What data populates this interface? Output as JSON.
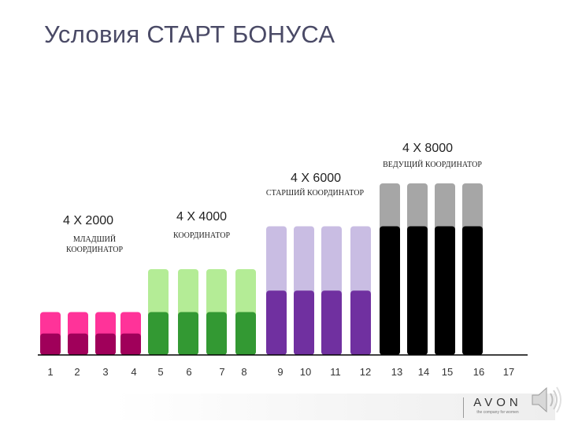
{
  "title": "Условия  СТАРТ БОНУСА",
  "chart_data": {
    "type": "bar",
    "stacked": true,
    "categories": [
      "1",
      "2",
      "3",
      "4",
      "5",
      "6",
      "7",
      "8",
      "9",
      "10",
      "11",
      "12",
      "13",
      "14",
      "15",
      "16",
      "17"
    ],
    "bars": [
      {
        "category": "1",
        "total": 2000,
        "base": 1000,
        "top_color": "#ff3399",
        "base_color": "#a0005a"
      },
      {
        "category": "2",
        "total": 2000,
        "base": 1000,
        "top_color": "#ff3399",
        "base_color": "#a0005a"
      },
      {
        "category": "3",
        "total": 2000,
        "base": 1000,
        "top_color": "#ff3399",
        "base_color": "#a0005a"
      },
      {
        "category": "4",
        "total": 2000,
        "base": 1000,
        "top_color": "#ff3399",
        "base_color": "#a0005a"
      },
      {
        "category": "5",
        "total": 4000,
        "base": 2000,
        "top_color": "#b4ec96",
        "base_color": "#339933"
      },
      {
        "category": "6",
        "total": 4000,
        "base": 2000,
        "top_color": "#b4ec96",
        "base_color": "#339933"
      },
      {
        "category": "7",
        "total": 4000,
        "base": 2000,
        "top_color": "#b4ec96",
        "base_color": "#339933"
      },
      {
        "category": "8",
        "total": 4000,
        "base": 2000,
        "top_color": "#b4ec96",
        "base_color": "#339933"
      },
      {
        "category": "9",
        "total": 6000,
        "base": 3000,
        "top_color": "#c9bde3",
        "base_color": "#7030a0"
      },
      {
        "category": "10",
        "total": 6000,
        "base": 3000,
        "top_color": "#c9bde3",
        "base_color": "#7030a0"
      },
      {
        "category": "11",
        "total": 6000,
        "base": 3000,
        "top_color": "#c9bde3",
        "base_color": "#7030a0"
      },
      {
        "category": "12",
        "total": 6000,
        "base": 3000,
        "top_color": "#c9bde3",
        "base_color": "#7030a0"
      },
      {
        "category": "13",
        "total": 8000,
        "base": 6000,
        "top_color": "#a6a6a6",
        "base_color": "#000000"
      },
      {
        "category": "14",
        "total": 8000,
        "base": 6000,
        "top_color": "#a6a6a6",
        "base_color": "#000000"
      },
      {
        "category": "15",
        "total": 8000,
        "base": 6000,
        "top_color": "#a6a6a6",
        "base_color": "#000000"
      },
      {
        "category": "16",
        "total": 8000,
        "base": 6000,
        "top_color": "#a6a6a6",
        "base_color": "#000000"
      }
    ],
    "groups": [
      {
        "label": "4 X 2000",
        "sublines": [
          "МЛАДШИЙ",
          "КООРДИНАТОР"
        ],
        "first": 1,
        "last": 4
      },
      {
        "label": "4 X 4000",
        "sublines": [
          "КООРДИНАТОР"
        ],
        "first": 5,
        "last": 8
      },
      {
        "label": "4 X 6000",
        "sublines": [
          "СТАРШИЙ КООРДИНАТОР"
        ],
        "first": 9,
        "last": 12
      },
      {
        "label": "4 X 8000",
        "sublines": [
          "ВЕДУЩИЙ КООРДИНАТОР"
        ],
        "first": 13,
        "last": 16
      }
    ],
    "legend": "none",
    "grid": false
  },
  "logo": {
    "word": "AVON",
    "tagline": "the company for women"
  },
  "icons": {
    "speaker": "speaker-icon"
  }
}
